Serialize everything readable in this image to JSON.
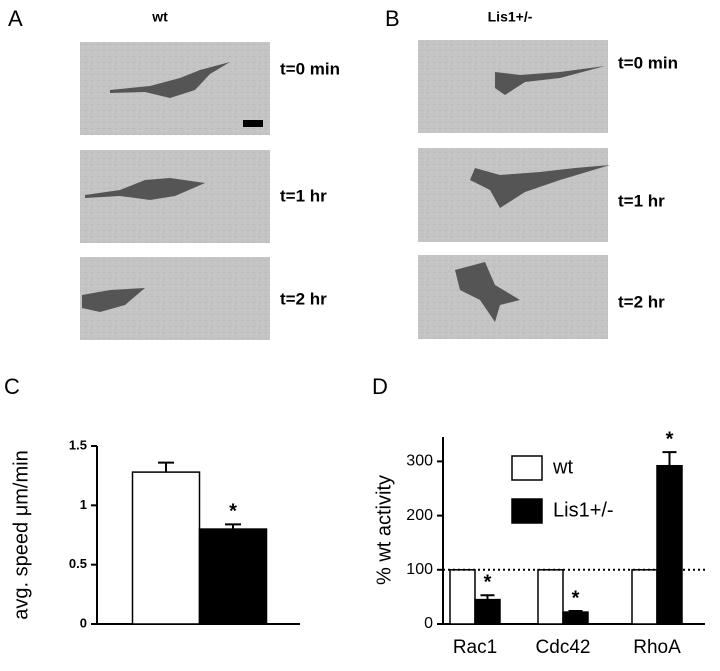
{
  "panels": [
    {
      "label": "A",
      "condition": "wt",
      "times": [
        "t=0 min",
        "t=1 hr",
        "t=2 hr"
      ]
    },
    {
      "label": "B",
      "condition": "Lis1+/-",
      "times": [
        "t=0 min",
        "t=1 hr",
        "t=2 hr"
      ]
    }
  ],
  "chart_data": [
    {
      "type": "bar",
      "panel_label": "C",
      "ylabel": "avg. speed μm/min",
      "categories": [
        null,
        null
      ],
      "values": [
        1.28,
        0.8
      ],
      "errors": [
        0.08,
        0.04
      ],
      "colors": [
        "#ffffff",
        "#000000"
      ],
      "significance": [
        null,
        "*"
      ],
      "ylim": [
        0,
        1.5
      ],
      "yticks": [
        0,
        0.5,
        1,
        1.5
      ]
    },
    {
      "type": "grouped_bar",
      "panel_label": "D",
      "ylabel": "% wt activity",
      "categories": [
        "Rac1",
        "Cdc42",
        "RhoA"
      ],
      "series": [
        {
          "name": "wt",
          "color": "#ffffff",
          "values": [
            100,
            100,
            100
          ]
        },
        {
          "name": "Lis1+/-",
          "color": "#000000",
          "values": [
            45,
            22,
            292
          ],
          "errors": [
            8,
            2,
            25
          ],
          "significance": [
            "*",
            "*",
            "*"
          ]
        }
      ],
      "reference_line": 100,
      "legend": "upper-right",
      "ylim": [
        0,
        345
      ],
      "yticks": [
        0,
        100,
        200,
        300
      ]
    }
  ]
}
